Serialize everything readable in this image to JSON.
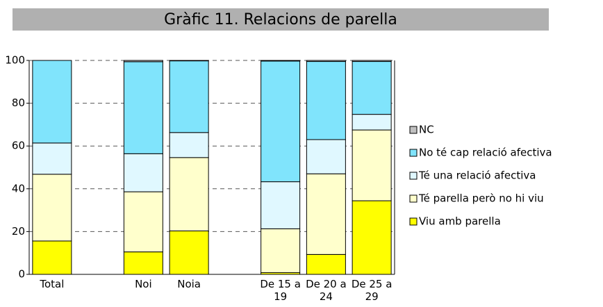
{
  "chart_data": {
    "type": "stacked-bar",
    "title": "Gràfic 11. Relacions de parella",
    "categories": [
      "Total",
      null,
      "Noi",
      "Noia",
      null,
      "De 15 a 19",
      "De 20 a 24",
      "De 25 a 29"
    ],
    "series": [
      {
        "name": "Viu amb parella",
        "color": "#ffff00",
        "values": [
          15.6,
          null,
          10.5,
          20.3,
          null,
          0.8,
          9.3,
          34.4
        ]
      },
      {
        "name": "Té parella però no hi viu",
        "color": "#ffffcc",
        "values": [
          31.2,
          null,
          28.1,
          34.3,
          null,
          20.5,
          37.7,
          33.1
        ]
      },
      {
        "name": "Té una relació afectiva",
        "color": "#e0f8ff",
        "values": [
          14.6,
          null,
          17.8,
          11.7,
          null,
          22,
          16,
          7.3
        ]
      },
      {
        "name": "No té cap relació afectiva",
        "color": "#80e4fc",
        "values": [
          38.6,
          null,
          43,
          33.5,
          null,
          56.4,
          36.5,
          24.7
        ]
      },
      {
        "name": "NC",
        "color": "#c0c0c0",
        "values": [
          0,
          null,
          0.6,
          0.2,
          null,
          0.3,
          0.5,
          0.5
        ]
      }
    ],
    "ylim": [
      0,
      100
    ],
    "yticks": [
      0,
      20,
      40,
      60,
      80,
      100
    ],
    "grid": true
  }
}
